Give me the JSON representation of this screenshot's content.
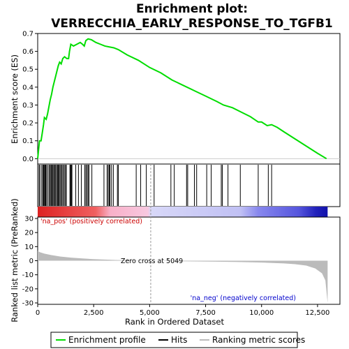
{
  "chart_data": {
    "type": "line",
    "title_line1": "Enrichment plot:",
    "title_line2": "VERRECCHIA_EARLY_RESPONSE_TO_TGFB1",
    "xlabel": "Rank in Ordered Dataset",
    "ylabel_top": "Enrichment score (ES)",
    "ylabel_bottom": "Ranked list metric (PreRanked)",
    "xlim": [
      0,
      13500
    ],
    "es_ylim": [
      -0.03,
      0.7
    ],
    "metric_ylim": [
      -31,
      31
    ],
    "x_ticks": [
      0,
      2500,
      5000,
      7500,
      10000,
      12500
    ],
    "x_tick_labels": [
      "0",
      "2,500",
      "5,000",
      "7,500",
      "10,000",
      "12,500"
    ],
    "es_ticks": [
      0.0,
      0.1,
      0.2,
      0.3,
      0.4,
      0.5,
      0.6,
      0.7
    ],
    "es_tick_labels": [
      "0.0",
      "0.1",
      "0.2",
      "0.3",
      "0.4",
      "0.5",
      "0.6",
      "0.7"
    ],
    "metric_ticks": [
      30,
      20,
      10,
      0,
      -10,
      -20,
      -30
    ],
    "metric_tick_labels": [
      "30",
      "20",
      "10",
      "0",
      "-10",
      "-20",
      "-30"
    ],
    "enrichment_profile": [
      [
        0,
        0.0
      ],
      [
        40,
        0.05
      ],
      [
        80,
        0.1
      ],
      [
        150,
        0.1
      ],
      [
        200,
        0.14
      ],
      [
        260,
        0.19
      ],
      [
        300,
        0.23
      ],
      [
        380,
        0.22
      ],
      [
        440,
        0.25
      ],
      [
        500,
        0.29
      ],
      [
        560,
        0.33
      ],
      [
        620,
        0.36
      ],
      [
        680,
        0.4
      ],
      [
        740,
        0.43
      ],
      [
        800,
        0.46
      ],
      [
        860,
        0.49
      ],
      [
        920,
        0.52
      ],
      [
        980,
        0.54
      ],
      [
        1050,
        0.53
      ],
      [
        1120,
        0.56
      ],
      [
        1200,
        0.57
      ],
      [
        1300,
        0.56
      ],
      [
        1380,
        0.56
      ],
      [
        1420,
        0.6
      ],
      [
        1480,
        0.64
      ],
      [
        1600,
        0.63
      ],
      [
        1750,
        0.64
      ],
      [
        1900,
        0.65
      ],
      [
        2000,
        0.64
      ],
      [
        2080,
        0.63
      ],
      [
        2150,
        0.66
      ],
      [
        2250,
        0.67
      ],
      [
        2400,
        0.665
      ],
      [
        2600,
        0.65
      ],
      [
        2800,
        0.64
      ],
      [
        3000,
        0.63
      ],
      [
        3200,
        0.625
      ],
      [
        3400,
        0.62
      ],
      [
        3600,
        0.61
      ],
      [
        4000,
        0.58
      ],
      [
        4500,
        0.55
      ],
      [
        5000,
        0.51
      ],
      [
        5500,
        0.48
      ],
      [
        6000,
        0.44
      ],
      [
        6500,
        0.41
      ],
      [
        7000,
        0.38
      ],
      [
        7500,
        0.35
      ],
      [
        8000,
        0.32
      ],
      [
        8300,
        0.3
      ],
      [
        8700,
        0.285
      ],
      [
        9100,
        0.26
      ],
      [
        9500,
        0.235
      ],
      [
        9850,
        0.205
      ],
      [
        10000,
        0.205
      ],
      [
        10250,
        0.185
      ],
      [
        10450,
        0.19
      ],
      [
        10700,
        0.175
      ],
      [
        11000,
        0.15
      ],
      [
        11500,
        0.11
      ],
      [
        12000,
        0.07
      ],
      [
        12500,
        0.03
      ],
      [
        12900,
        0.0
      ]
    ],
    "hits": [
      60,
      100,
      180,
      230,
      260,
      290,
      330,
      360,
      400,
      460,
      520,
      560,
      600,
      640,
      680,
      720,
      760,
      800,
      850,
      880,
      920,
      960,
      1000,
      1050,
      1090,
      1140,
      1190,
      1240,
      1280,
      1440,
      1470,
      1500,
      1530,
      1700,
      1820,
      1950,
      2100,
      2150,
      2200,
      2250,
      2290,
      2420,
      2960,
      3100,
      3150,
      3200,
      3230,
      3300,
      3380,
      3560,
      3600,
      4400,
      4600,
      4850,
      5200,
      5950,
      6100,
      6650,
      6700,
      7000,
      7100,
      7550,
      7750,
      8200,
      8250,
      8500,
      9050,
      9850,
      10300,
      10450
    ],
    "metric_curve": [
      [
        0,
        7.0
      ],
      [
        100,
        6.0
      ],
      [
        300,
        5.0
      ],
      [
        600,
        4.0
      ],
      [
        1000,
        3.0
      ],
      [
        1500,
        2.2
      ],
      [
        2000,
        1.6
      ],
      [
        2500,
        1.1
      ],
      [
        3000,
        0.8
      ],
      [
        3500,
        0.5
      ],
      [
        4000,
        0.3
      ],
      [
        4500,
        0.15
      ],
      [
        5049,
        0.0
      ],
      [
        5500,
        -0.15
      ],
      [
        6000,
        -0.3
      ],
      [
        7000,
        -0.5
      ],
      [
        8000,
        -0.7
      ],
      [
        9000,
        -0.9
      ],
      [
        10000,
        -1.3
      ],
      [
        10500,
        -1.6
      ],
      [
        11000,
        -1.9
      ],
      [
        11500,
        -2.5
      ],
      [
        12000,
        -3.5
      ],
      [
        12400,
        -5.5
      ],
      [
        12700,
        -9.0
      ],
      [
        12850,
        -14.0
      ],
      [
        12950,
        -30.0
      ]
    ],
    "pos_label": "'na_pos' (positively correlated)",
    "neg_label": "'na_neg' (negatively correlated)",
    "zero_cross_label": "Zero cross at 5049",
    "zero_cross": 5049,
    "legend": [
      {
        "label": "Enrichment profile",
        "color": "#00dd00"
      },
      {
        "label": "Hits",
        "color": "#000000"
      },
      {
        "label": "Ranking metric scores",
        "color": "#bbbbbb"
      }
    ],
    "colors": {
      "es_line": "#00dd00",
      "pos_text": "#cc0000",
      "neg_text": "#0000cc",
      "metric_fill": "#bbbbbb"
    }
  }
}
